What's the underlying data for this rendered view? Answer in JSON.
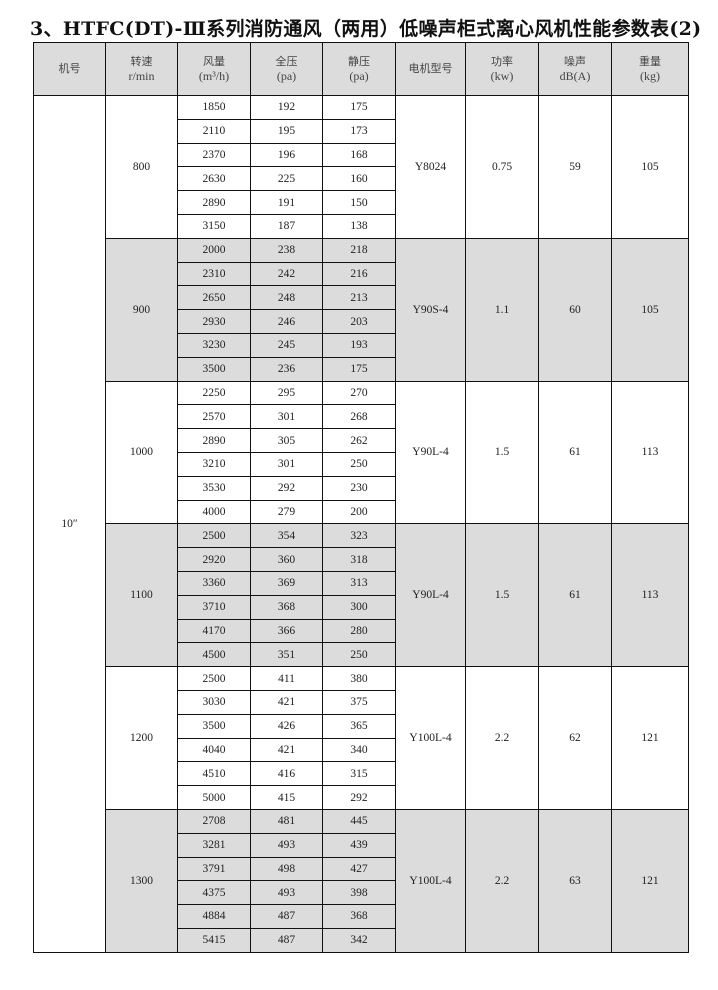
{
  "title": "3、HTFC(DT)-Ⅲ系列消防通风（两用）低噪声柜式离心风机性能参数表(2)",
  "headers": [
    {
      "l1": "机号",
      "l2": ""
    },
    {
      "l1": "转速",
      "l2": "r/min"
    },
    {
      "l1": "风量",
      "l2": "(m³/h)"
    },
    {
      "l1": "全压",
      "l2": "(pa)"
    },
    {
      "l1": "静压",
      "l2": "(pa)"
    },
    {
      "l1": "电机型号",
      "l2": ""
    },
    {
      "l1": "功率",
      "l2": "(kw)"
    },
    {
      "l1": "噪声",
      "l2": "dB(A)"
    },
    {
      "l1": "重量",
      "l2": "(kg)"
    }
  ],
  "machine_no": "10″",
  "groups": [
    {
      "speed": "800",
      "motor": "Y8024",
      "power": "0.75",
      "noise": "59",
      "weight": "105",
      "shaded": false,
      "rows": [
        [
          "1850",
          "192",
          "175"
        ],
        [
          "2110",
          "195",
          "173"
        ],
        [
          "2370",
          "196",
          "168"
        ],
        [
          "2630",
          "225",
          "160"
        ],
        [
          "2890",
          "191",
          "150"
        ],
        [
          "3150",
          "187",
          "138"
        ]
      ]
    },
    {
      "speed": "900",
      "motor": "Y90S-4",
      "power": "1.1",
      "noise": "60",
      "weight": "105",
      "shaded": true,
      "rows": [
        [
          "2000",
          "238",
          "218"
        ],
        [
          "2310",
          "242",
          "216"
        ],
        [
          "2650",
          "248",
          "213"
        ],
        [
          "2930",
          "246",
          "203"
        ],
        [
          "3230",
          "245",
          "193"
        ],
        [
          "3500",
          "236",
          "175"
        ]
      ]
    },
    {
      "speed": "1000",
      "motor": "Y90L-4",
      "power": "1.5",
      "noise": "61",
      "weight": "113",
      "shaded": false,
      "rows": [
        [
          "2250",
          "295",
          "270"
        ],
        [
          "2570",
          "301",
          "268"
        ],
        [
          "2890",
          "305",
          "262"
        ],
        [
          "3210",
          "301",
          "250"
        ],
        [
          "3530",
          "292",
          "230"
        ],
        [
          "4000",
          "279",
          "200"
        ]
      ]
    },
    {
      "speed": "1100",
      "motor": "Y90L-4",
      "power": "1.5",
      "noise": "61",
      "weight": "113",
      "shaded": true,
      "rows": [
        [
          "2500",
          "354",
          "323"
        ],
        [
          "2920",
          "360",
          "318"
        ],
        [
          "3360",
          "369",
          "313"
        ],
        [
          "3710",
          "368",
          "300"
        ],
        [
          "4170",
          "366",
          "280"
        ],
        [
          "4500",
          "351",
          "250"
        ]
      ]
    },
    {
      "speed": "1200",
      "motor": "Y100L-4",
      "power": "2.2",
      "noise": "62",
      "weight": "121",
      "shaded": false,
      "rows": [
        [
          "2500",
          "411",
          "380"
        ],
        [
          "3030",
          "421",
          "375"
        ],
        [
          "3500",
          "426",
          "365"
        ],
        [
          "4040",
          "421",
          "340"
        ],
        [
          "4510",
          "416",
          "315"
        ],
        [
          "5000",
          "415",
          "292"
        ]
      ]
    },
    {
      "speed": "1300",
      "motor": "Y100L-4",
      "power": "2.2",
      "noise": "63",
      "weight": "121",
      "shaded": true,
      "rows": [
        [
          "2708",
          "481",
          "445"
        ],
        [
          "3281",
          "493",
          "439"
        ],
        [
          "3791",
          "498",
          "427"
        ],
        [
          "4375",
          "493",
          "398"
        ],
        [
          "4884",
          "487",
          "368"
        ],
        [
          "5415",
          "487",
          "342"
        ]
      ]
    }
  ]
}
